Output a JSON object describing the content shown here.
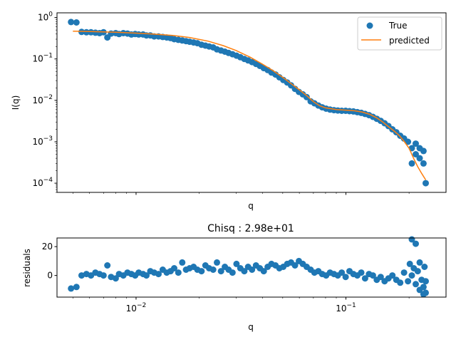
{
  "chart_data": [
    {
      "type": "scatter",
      "xscale": "log",
      "yscale": "log",
      "xlim": [
        0.0042,
        0.3
      ],
      "ylim": [
        6e-05,
        1.3
      ],
      "xlabel": "q",
      "ylabel": "I(q)",
      "title": "",
      "legend": {
        "placement": "top-right",
        "entries": [
          "True",
          "predicted"
        ]
      },
      "yticks": [
        {
          "value": 0.0001,
          "label": "10",
          "exp": "−4"
        },
        {
          "value": 0.001,
          "label": "10",
          "exp": "−3"
        },
        {
          "value": 0.01,
          "label": "10",
          "exp": "−2"
        },
        {
          "value": 0.1,
          "label": "10",
          "exp": "−1"
        },
        {
          "value": 1,
          "label": "10",
          "exp": "0"
        }
      ],
      "series": [
        {
          "name": "True",
          "kind": "scatter",
          "color": "#1f77b4",
          "points": [
            [
              0.0049,
              0.78
            ],
            [
              0.0052,
              0.76
            ],
            [
              0.0055,
              0.45
            ],
            [
              0.0058,
              0.44
            ],
            [
              0.0061,
              0.44
            ],
            [
              0.0064,
              0.43
            ],
            [
              0.0067,
              0.42
            ],
            [
              0.007,
              0.44
            ],
            [
              0.0073,
              0.33
            ],
            [
              0.0076,
              0.41
            ],
            [
              0.008,
              0.42
            ],
            [
              0.0083,
              0.4
            ],
            [
              0.0087,
              0.42
            ],
            [
              0.0091,
              0.41
            ],
            [
              0.0095,
              0.39
            ],
            [
              0.0099,
              0.4
            ],
            [
              0.0103,
              0.39
            ],
            [
              0.0108,
              0.39
            ],
            [
              0.0112,
              0.37
            ],
            [
              0.0117,
              0.37
            ],
            [
              0.0122,
              0.35
            ],
            [
              0.0128,
              0.35
            ],
            [
              0.0134,
              0.34
            ],
            [
              0.014,
              0.33
            ],
            [
              0.0146,
              0.32
            ],
            [
              0.0152,
              0.3
            ],
            [
              0.0159,
              0.29
            ],
            [
              0.0166,
              0.28
            ],
            [
              0.0173,
              0.27
            ],
            [
              0.018,
              0.26
            ],
            [
              0.0188,
              0.25
            ],
            [
              0.0196,
              0.24
            ],
            [
              0.0205,
              0.22
            ],
            [
              0.0214,
              0.21
            ],
            [
              0.0223,
              0.2
            ],
            [
              0.0233,
              0.19
            ],
            [
              0.0243,
              0.17
            ],
            [
              0.0254,
              0.16
            ],
            [
              0.0265,
              0.15
            ],
            [
              0.0276,
              0.14
            ],
            [
              0.0288,
              0.13
            ],
            [
              0.0301,
              0.12
            ],
            [
              0.0314,
              0.11
            ],
            [
              0.0328,
              0.1
            ],
            [
              0.0342,
              0.092
            ],
            [
              0.0357,
              0.084
            ],
            [
              0.0373,
              0.076
            ],
            [
              0.0389,
              0.068
            ],
            [
              0.0406,
              0.06
            ],
            [
              0.0424,
              0.054
            ],
            [
              0.0442,
              0.047
            ],
            [
              0.0462,
              0.042
            ],
            [
              0.0482,
              0.036
            ],
            [
              0.0503,
              0.031
            ],
            [
              0.0525,
              0.027
            ],
            [
              0.0548,
              0.023
            ],
            [
              0.0572,
              0.019
            ],
            [
              0.0597,
              0.016
            ],
            [
              0.0623,
              0.014
            ],
            [
              0.065,
              0.012
            ],
            [
              0.0679,
              0.0095
            ],
            [
              0.0708,
              0.0085
            ],
            [
              0.0739,
              0.0075
            ],
            [
              0.0771,
              0.0068
            ],
            [
              0.0805,
              0.0063
            ],
            [
              0.084,
              0.006
            ],
            [
              0.0877,
              0.0058
            ],
            [
              0.0915,
              0.0057
            ],
            [
              0.0955,
              0.0056
            ],
            [
              0.0997,
              0.0056
            ],
            [
              0.104,
              0.0055
            ],
            [
              0.1086,
              0.0054
            ],
            [
              0.1133,
              0.0052
            ],
            [
              0.1183,
              0.005
            ],
            [
              0.1234,
              0.0047
            ],
            [
              0.1288,
              0.0044
            ],
            [
              0.1345,
              0.004
            ],
            [
              0.1403,
              0.0036
            ],
            [
              0.1465,
              0.0032
            ],
            [
              0.1529,
              0.0028
            ],
            [
              0.1595,
              0.0024
            ],
            [
              0.1665,
              0.002
            ],
            [
              0.1738,
              0.0017
            ],
            [
              0.1814,
              0.0014
            ],
            [
              0.1893,
              0.0012
            ],
            [
              0.1976,
              0.001
            ],
            [
              0.2062,
              0.0007
            ],
            [
              0.2062,
              0.0003
            ],
            [
              0.2152,
              0.0005
            ],
            [
              0.2152,
              0.0009
            ],
            [
              0.2246,
              0.0004
            ],
            [
              0.2246,
              0.0007
            ],
            [
              0.2344,
              0.0003
            ],
            [
              0.2344,
              0.0006
            ],
            [
              0.24,
              0.0001
            ]
          ]
        },
        {
          "name": "predicted",
          "kind": "line",
          "color": "#ff7f0e",
          "points": [
            [
              0.005,
              0.47
            ],
            [
              0.006,
              0.46
            ],
            [
              0.008,
              0.44
            ],
            [
              0.01,
              0.42
            ],
            [
              0.012,
              0.4
            ],
            [
              0.015,
              0.37
            ],
            [
              0.018,
              0.33
            ],
            [
              0.022,
              0.27
            ],
            [
              0.026,
              0.21
            ],
            [
              0.03,
              0.16
            ],
            [
              0.035,
              0.11
            ],
            [
              0.04,
              0.075
            ],
            [
              0.045,
              0.052
            ],
            [
              0.05,
              0.036
            ],
            [
              0.055,
              0.025
            ],
            [
              0.06,
              0.018
            ],
            [
              0.065,
              0.013
            ],
            [
              0.07,
              0.0093
            ],
            [
              0.075,
              0.0074
            ],
            [
              0.08,
              0.0066
            ],
            [
              0.09,
              0.006
            ],
            [
              0.1,
              0.0058
            ],
            [
              0.11,
              0.0056
            ],
            [
              0.12,
              0.0052
            ],
            [
              0.13,
              0.0046
            ],
            [
              0.14,
              0.0038
            ],
            [
              0.15,
              0.003
            ],
            [
              0.16,
              0.0023
            ],
            [
              0.17,
              0.0018
            ],
            [
              0.18,
              0.0014
            ],
            [
              0.19,
              0.001
            ],
            [
              0.2,
              0.0007
            ],
            [
              0.21,
              0.0004
            ],
            [
              0.22,
              0.00025
            ],
            [
              0.23,
              0.00017
            ],
            [
              0.24,
              0.00012
            ]
          ]
        }
      ]
    },
    {
      "type": "scatter",
      "xscale": "log",
      "yscale": "linear",
      "xlim": [
        0.0042,
        0.3
      ],
      "ylim": [
        -15,
        26
      ],
      "xlabel": "q",
      "ylabel": "residuals",
      "title": "Chisq : 2.98e+01",
      "xticks": [
        {
          "value": 0.01,
          "label": "10",
          "exp": "−2"
        },
        {
          "value": 0.1,
          "label": "10",
          "exp": "−1"
        }
      ],
      "yticks": [
        {
          "value": 0,
          "label": "0"
        },
        {
          "value": 20,
          "label": "20"
        }
      ],
      "series": [
        {
          "name": "residuals",
          "kind": "scatter",
          "color": "#1f77b4",
          "points": [
            [
              0.0049,
              -9
            ],
            [
              0.0052,
              -8
            ],
            [
              0.0055,
              0
            ],
            [
              0.0058,
              1
            ],
            [
              0.0061,
              0
            ],
            [
              0.0064,
              2
            ],
            [
              0.0067,
              1
            ],
            [
              0.007,
              0
            ],
            [
              0.0073,
              7
            ],
            [
              0.0076,
              -1
            ],
            [
              0.008,
              -2
            ],
            [
              0.0083,
              1
            ],
            [
              0.0087,
              0
            ],
            [
              0.0091,
              2
            ],
            [
              0.0095,
              1
            ],
            [
              0.0099,
              0
            ],
            [
              0.0103,
              2
            ],
            [
              0.0108,
              1
            ],
            [
              0.0112,
              0
            ],
            [
              0.0117,
              3
            ],
            [
              0.0122,
              2
            ],
            [
              0.0128,
              1
            ],
            [
              0.0134,
              4
            ],
            [
              0.014,
              2
            ],
            [
              0.0146,
              3
            ],
            [
              0.0152,
              5
            ],
            [
              0.0159,
              2
            ],
            [
              0.0166,
              9
            ],
            [
              0.0173,
              4
            ],
            [
              0.018,
              5
            ],
            [
              0.0188,
              6
            ],
            [
              0.0196,
              4
            ],
            [
              0.0205,
              3
            ],
            [
              0.0214,
              7
            ],
            [
              0.0223,
              5
            ],
            [
              0.0233,
              4
            ],
            [
              0.0243,
              9
            ],
            [
              0.0254,
              3
            ],
            [
              0.0265,
              6
            ],
            [
              0.0276,
              4
            ],
            [
              0.0288,
              2
            ],
            [
              0.0301,
              8
            ],
            [
              0.0314,
              5
            ],
            [
              0.0328,
              3
            ],
            [
              0.0342,
              6
            ],
            [
              0.0357,
              4
            ],
            [
              0.0373,
              7
            ],
            [
              0.0389,
              5
            ],
            [
              0.0406,
              3
            ],
            [
              0.0424,
              6
            ],
            [
              0.0442,
              8
            ],
            [
              0.0462,
              7
            ],
            [
              0.0482,
              5
            ],
            [
              0.0503,
              6
            ],
            [
              0.0525,
              8
            ],
            [
              0.0548,
              9
            ],
            [
              0.0572,
              7
            ],
            [
              0.0597,
              10
            ],
            [
              0.0623,
              8
            ],
            [
              0.065,
              6
            ],
            [
              0.0679,
              4
            ],
            [
              0.0708,
              2
            ],
            [
              0.0739,
              3
            ],
            [
              0.0771,
              1
            ],
            [
              0.0805,
              0
            ],
            [
              0.084,
              2
            ],
            [
              0.0877,
              1
            ],
            [
              0.0915,
              0
            ],
            [
              0.0955,
              2
            ],
            [
              0.0997,
              -1
            ],
            [
              0.104,
              3
            ],
            [
              0.1086,
              1
            ],
            [
              0.1133,
              0
            ],
            [
              0.1183,
              2
            ],
            [
              0.1234,
              -2
            ],
            [
              0.1288,
              1
            ],
            [
              0.1345,
              0
            ],
            [
              0.1403,
              -3
            ],
            [
              0.1465,
              -1
            ],
            [
              0.1529,
              -4
            ],
            [
              0.1595,
              -2
            ],
            [
              0.1665,
              0
            ],
            [
              0.1738,
              -3
            ],
            [
              0.1814,
              -5
            ],
            [
              0.1893,
              2
            ],
            [
              0.1976,
              -4
            ],
            [
              0.2016,
              8
            ],
            [
              0.2062,
              0
            ],
            [
              0.2062,
              25
            ],
            [
              0.2107,
              5
            ],
            [
              0.2152,
              -6
            ],
            [
              0.2152,
              22
            ],
            [
              0.2199,
              3
            ],
            [
              0.2246,
              -10
            ],
            [
              0.2246,
              9
            ],
            [
              0.2295,
              -3
            ],
            [
              0.2344,
              -13
            ],
            [
              0.2344,
              -8
            ],
            [
              0.237,
              6
            ],
            [
              0.24,
              -12
            ],
            [
              0.24,
              -4
            ]
          ]
        }
      ]
    }
  ]
}
